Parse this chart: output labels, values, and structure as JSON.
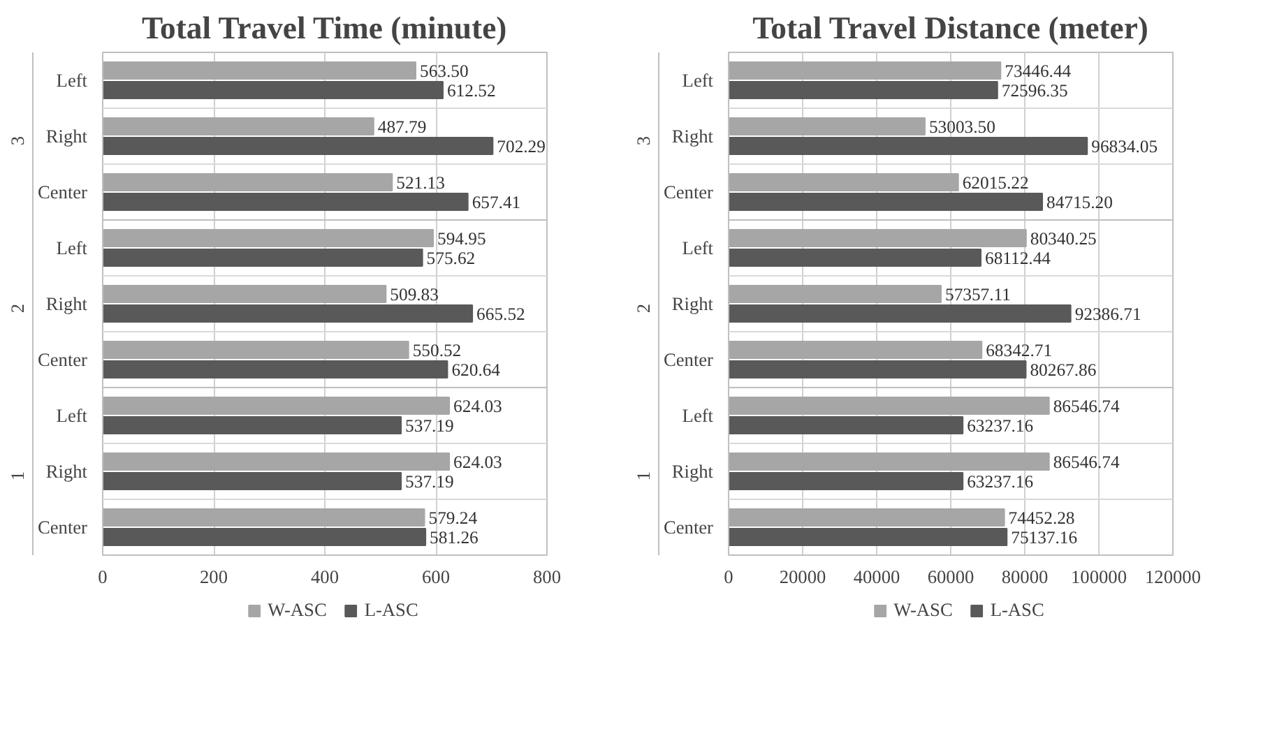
{
  "chart_data": [
    {
      "type": "bar",
      "orientation": "horizontal",
      "title": "Total Travel Time (minute)",
      "categories": [
        "Left",
        "Right",
        "Center",
        "Left",
        "Right",
        "Center",
        "Left",
        "Right",
        "Center"
      ],
      "annotations": [
        "3",
        "2",
        "1"
      ],
      "series": [
        {
          "name": "W-ASC",
          "color": "#a6a6a6",
          "values": [
            563.5,
            487.79,
            521.13,
            594.95,
            509.83,
            550.52,
            624.03,
            624.03,
            579.24
          ],
          "value_labels": [
            "563.50",
            "487.79",
            "521.13",
            "594.95",
            "509.83",
            "550.52",
            "624.03",
            "624.03",
            "579.24"
          ]
        },
        {
          "name": "L-ASC",
          "color": "#595959",
          "values": [
            612.52,
            702.29,
            657.41,
            575.62,
            665.52,
            620.64,
            537.19,
            537.19,
            581.26
          ],
          "value_labels": [
            "612.52",
            "702.29",
            "657.41",
            "575.62",
            "665.52",
            "620.64",
            "537.19",
            "537.19",
            "581.26"
          ]
        }
      ],
      "xlim": [
        0,
        800
      ],
      "xticks": [
        0,
        200,
        400,
        600,
        800
      ],
      "grid": "x",
      "legend": "bottom"
    },
    {
      "type": "bar",
      "orientation": "horizontal",
      "title": "Total Travel Distance (meter)",
      "categories": [
        "Left",
        "Right",
        "Center",
        "Left",
        "Right",
        "Center",
        "Left",
        "Right",
        "Center"
      ],
      "annotations": [
        "3",
        "2",
        "1"
      ],
      "series": [
        {
          "name": "W-ASC",
          "color": "#a6a6a6",
          "values": [
            73446.44,
            53003.5,
            62015.22,
            80340.25,
            57357.11,
            68342.71,
            86546.74,
            86546.74,
            74452.28
          ],
          "value_labels": [
            "73446.44",
            "53003.50",
            "62015.22",
            "80340.25",
            "57357.11",
            "68342.71",
            "86546.74",
            "86546.74",
            "74452.28"
          ]
        },
        {
          "name": "L-ASC",
          "color": "#595959",
          "values": [
            72596.35,
            96834.05,
            84715.2,
            68112.44,
            92386.71,
            80267.86,
            63237.16,
            63237.16,
            75137.16
          ],
          "value_labels": [
            "72596.35",
            "96834.05",
            "84715.20",
            "68112.44",
            "92386.71",
            "80267.86",
            "63237.16",
            "63237.16",
            "75137.16"
          ]
        }
      ],
      "xlim": [
        0,
        120000
      ],
      "xticks": [
        0,
        20000,
        40000,
        60000,
        80000,
        100000,
        120000
      ],
      "grid": "x",
      "legend": "bottom"
    }
  ]
}
